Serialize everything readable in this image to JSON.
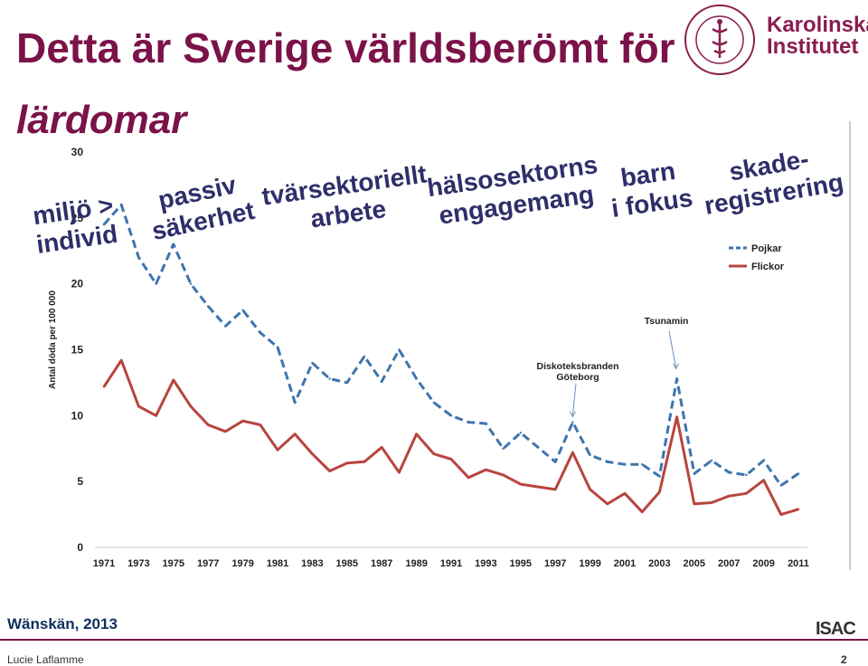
{
  "slide": {
    "title_line1": "Detta är Sverige världsberömt för",
    "title_line2": "lärdomar",
    "logo_text1": "Karolinska",
    "logo_text2": "Institutet",
    "source": "Wänskän, 2013",
    "presenter": "Lucie Laflamme",
    "page": "2",
    "isac_logo": "ISAC"
  },
  "colors": {
    "title": "#7b1249",
    "boys": "#3e74ad",
    "girls": "#b8453f",
    "annotation": "#2e2e6a"
  },
  "chart_data": {
    "type": "line",
    "ylabel": "Antal döda per 100 000",
    "ylim": [
      0,
      30
    ],
    "y_ticks": [
      0,
      5,
      10,
      15,
      20,
      25,
      30
    ],
    "x": [
      1971,
      1972,
      1973,
      1974,
      1975,
      1976,
      1977,
      1978,
      1979,
      1980,
      1981,
      1982,
      1983,
      1984,
      1985,
      1986,
      1987,
      1988,
      1989,
      1990,
      1991,
      1992,
      1993,
      1994,
      1995,
      1996,
      1997,
      1998,
      1999,
      2000,
      2001,
      2002,
      2003,
      2004,
      2005,
      2006,
      2007,
      2008,
      2009,
      2010,
      2011
    ],
    "x_tick_labels": [
      "1971",
      "1973",
      "1975",
      "1977",
      "1979",
      "1981",
      "1983",
      "1985",
      "1987",
      "1989",
      "1991",
      "1993",
      "1995",
      "1997",
      "1999",
      "2001",
      "2003",
      "2005",
      "2007",
      "2009",
      "2011"
    ],
    "series": [
      {
        "name": "Pojkar",
        "style": "dashed",
        "values": [
          24.5,
          26,
          22,
          20,
          23,
          20,
          18.3,
          16.8,
          18,
          16.3,
          15.2,
          11,
          14,
          12.8,
          12.5,
          14.5,
          12.6,
          15,
          12.8,
          11,
          10,
          9.5,
          9.4,
          7.5,
          8.7,
          7.6,
          6.5,
          9.5,
          7,
          6.5,
          6.3,
          6.3,
          5.4,
          12.8,
          5.6,
          6.6,
          5.7,
          5.5,
          6.6,
          4.7,
          5.6
        ]
      },
      {
        "name": "Flickor",
        "style": "solid",
        "values": [
          12.2,
          14.2,
          10.7,
          10,
          12.7,
          10.7,
          9.3,
          8.8,
          9.6,
          9.3,
          7.4,
          8.6,
          7.1,
          5.8,
          6.4,
          6.5,
          7.6,
          5.7,
          8.6,
          7.1,
          6.7,
          5.3,
          5.9,
          5.5,
          4.8,
          4.6,
          4.4,
          7.2,
          4.4,
          3.3,
          4.1,
          2.7,
          4.2,
          9.9,
          3.3,
          3.4,
          3.9,
          4.1,
          5.1,
          2.5,
          2.9
        ]
      }
    ],
    "callouts": [
      {
        "text": "Diskoteksbranden Göteborg",
        "year": 1998
      },
      {
        "text": "Tsunamin",
        "year": 2004
      }
    ],
    "overlay_labels": [
      {
        "text": "miljö > individ"
      },
      {
        "text": "passiv säkerhet"
      },
      {
        "text": "tvärsektoriellt arbete"
      },
      {
        "text": "hälsosektorns engagemang"
      },
      {
        "text": "barn i fokus"
      },
      {
        "text": "skade-registrering"
      }
    ]
  }
}
